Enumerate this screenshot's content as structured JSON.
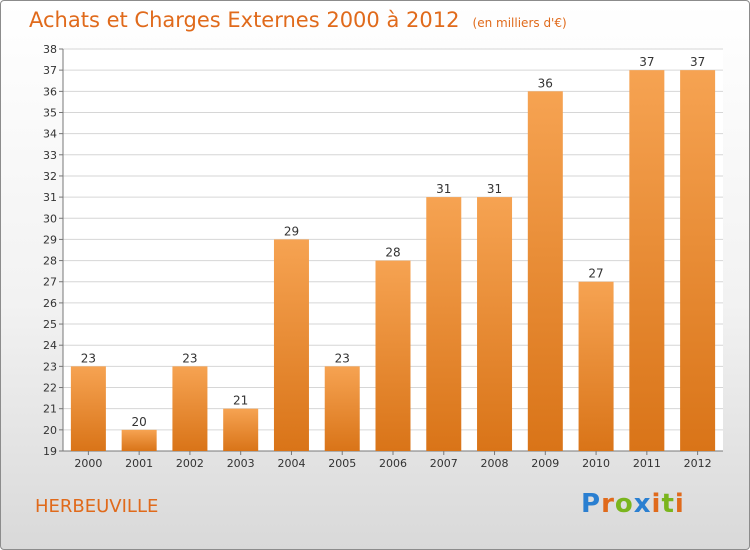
{
  "title": "Achats et Charges Externes 2000 à 2012",
  "unit": "(en milliers d'€)",
  "commune": "HERBEUVILLE",
  "logo": {
    "text": "Proxiti",
    "colors": [
      "#2a7fd1",
      "#e06a1b",
      "#7ab51d",
      "#2a7fd1",
      "#e06a1b",
      "#7ab51d",
      "#e06a1b"
    ]
  },
  "colors": {
    "bar_top": "#f6a352",
    "bar_bottom": "#d97418",
    "title": "#e06a1b"
  },
  "chart_data": {
    "type": "bar",
    "categories": [
      "2000",
      "2001",
      "2002",
      "2003",
      "2004",
      "2005",
      "2006",
      "2007",
      "2008",
      "2009",
      "2010",
      "2011",
      "2012"
    ],
    "values": [
      23,
      20,
      23,
      21,
      29,
      23,
      28,
      31,
      31,
      36,
      27,
      37,
      37
    ],
    "ylim": [
      19,
      38
    ],
    "yticks": [
      19,
      20,
      21,
      22,
      23,
      24,
      25,
      26,
      27,
      28,
      29,
      30,
      31,
      32,
      33,
      34,
      35,
      36,
      37,
      38
    ],
    "grid": true,
    "data_labels": true
  }
}
